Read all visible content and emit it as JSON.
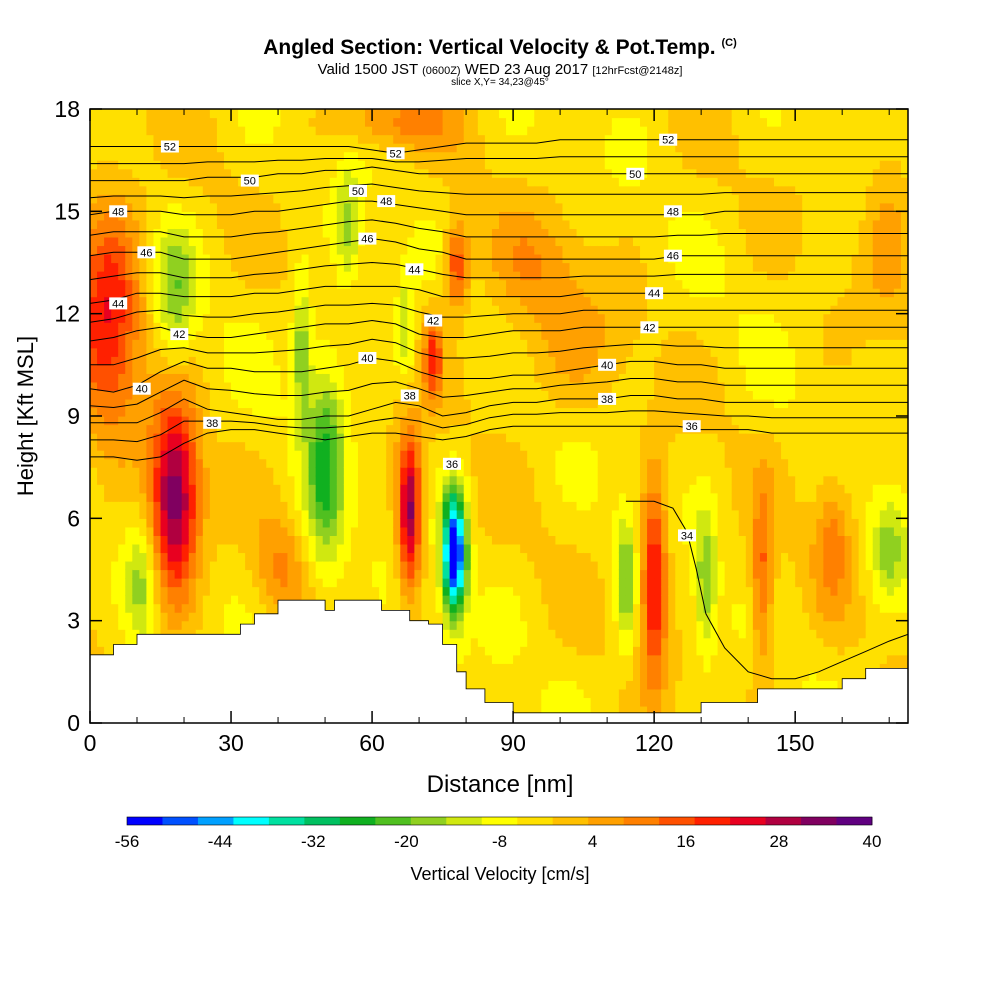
{
  "title": {
    "main": "Angled Section: Vertical Velocity & Pot.Temp.",
    "copyright": "(C)",
    "valid_prefix": "Valid 1500 JST",
    "valid_utc": "(0600Z)",
    "valid_suffix": "WED 23 Aug 2017",
    "forecast": "[12hrFcst@2148z]",
    "slice": "slice X,Y= 34,23@45°"
  },
  "chart_data": {
    "type": "heatmap",
    "xlabel": "Distance [nm]",
    "ylabel": "Height [Kft MSL]",
    "xlim": [
      0,
      174
    ],
    "ylim": [
      0,
      18
    ],
    "x_ticks": [
      0,
      30,
      60,
      90,
      120,
      150
    ],
    "y_ticks": [
      0,
      3,
      6,
      9,
      12,
      15,
      18
    ],
    "colorbar": {
      "label": "Vertical Velocity [cm/s]",
      "tick_labels": [
        -56,
        -44,
        -32,
        -20,
        -8,
        4,
        16,
        28,
        40
      ],
      "colors": [
        "#0000ff",
        "#0050ff",
        "#00a0ff",
        "#00ffff",
        "#00e0a0",
        "#00c060",
        "#10b020",
        "#50c020",
        "#90d020",
        "#d0e810",
        "#ffff00",
        "#ffe000",
        "#ffc000",
        "#ffa000",
        "#ff8000",
        "#ff5000",
        "#ff2000",
        "#e80020",
        "#b00040",
        "#800060",
        "#600080"
      ]
    },
    "velocity_features": [
      {
        "x": 18,
        "z": 6.5,
        "rx": 5,
        "rz": 2.8,
        "w": 38
      },
      {
        "x": 68,
        "z": 6.2,
        "rx": 2.5,
        "rz": 2.2,
        "w": 36
      },
      {
        "x": 120,
        "z": 4.2,
        "rx": 2.8,
        "rz": 2.8,
        "w": 28
      },
      {
        "x": 77.5,
        "z": 5,
        "rx": 2.5,
        "rz": 1.8,
        "w": -56
      },
      {
        "x": 4,
        "z": 12,
        "rx": 7,
        "rz": 3.5,
        "w": 24
      },
      {
        "x": 78,
        "z": 13.4,
        "rx": 2.5,
        "rz": 1.3,
        "w": 22
      },
      {
        "x": 73,
        "z": 10.8,
        "rx": 2,
        "rz": 1.3,
        "w": 20
      },
      {
        "x": 50,
        "z": 7.5,
        "rx": 4,
        "rz": 3.5,
        "w": -20
      },
      {
        "x": 45,
        "z": 11,
        "rx": 2,
        "rz": 2,
        "w": -16
      },
      {
        "x": 18,
        "z": 12.5,
        "rx": 4,
        "rz": 2,
        "w": -14
      },
      {
        "x": 55,
        "z": 14.5,
        "rx": 2.5,
        "rz": 1.8,
        "w": -12
      },
      {
        "x": 67,
        "z": 11.5,
        "rx": 1.8,
        "rz": 1.5,
        "w": -12
      },
      {
        "x": 114,
        "z": 4.2,
        "rx": 2.2,
        "rz": 2,
        "w": -16
      },
      {
        "x": 131,
        "z": 4.2,
        "rx": 2.2,
        "rz": 2,
        "w": -16
      },
      {
        "x": 170,
        "z": 5.2,
        "rx": 4,
        "rz": 1.5,
        "w": -14
      },
      {
        "x": 11,
        "z": 4,
        "rx": 3,
        "rz": 2,
        "w": -12
      },
      {
        "x": 143,
        "z": 4,
        "rx": 2.5,
        "rz": 2.5,
        "w": 18
      },
      {
        "x": 158,
        "z": 5.5,
        "rx": 4,
        "rz": 2,
        "w": 12
      },
      {
        "x": 40,
        "z": 4.5,
        "rx": 5,
        "rz": 1.5,
        "w": 10
      },
      {
        "x": 65,
        "z": 17.6,
        "rx": 12,
        "rz": 0.8,
        "w": 12
      },
      {
        "x": 95,
        "z": 13.5,
        "rx": 10,
        "rz": 1.5,
        "w": 8
      },
      {
        "x": 100,
        "z": 11,
        "rx": 15,
        "rz": 2,
        "w": 6
      },
      {
        "x": 170,
        "z": 15,
        "rx": 5,
        "rz": 3,
        "w": 8
      }
    ],
    "terrain": {
      "x": [
        0,
        5,
        10,
        20,
        28,
        32,
        35,
        40,
        45,
        48,
        50,
        52,
        55,
        58,
        62,
        65,
        68,
        72,
        75,
        78,
        80,
        84,
        90,
        100,
        110,
        115,
        125,
        128,
        130,
        138,
        142,
        150,
        160,
        165,
        174
      ],
      "z": [
        2.0,
        2.3,
        2.6,
        2.6,
        2.6,
        2.9,
        3.2,
        3.6,
        3.6,
        3.6,
        3.3,
        3.6,
        3.6,
        3.6,
        3.3,
        3.3,
        3.0,
        2.9,
        2.3,
        1.5,
        1.0,
        0.6,
        0.3,
        0.3,
        0.3,
        0.3,
        0.3,
        0.3,
        0.6,
        0.6,
        1.0,
        1.0,
        1.3,
        1.6,
        1.6
      ]
    },
    "contours": {
      "x": [
        0,
        5,
        10,
        15,
        20,
        25,
        30,
        35,
        40,
        45,
        50,
        55,
        60,
        65,
        70,
        75,
        80,
        85,
        90,
        95,
        100,
        105,
        110,
        115,
        120,
        125,
        130,
        135,
        140,
        145,
        150,
        155,
        160,
        165,
        170,
        174
      ],
      "levels": [
        {
          "value": 36,
          "label": "36",
          "z": [
            7.8,
            7.8,
            7.7,
            7.8,
            8.2,
            8.5,
            8.6,
            8.6,
            8.5,
            8.4,
            8.3,
            8.4,
            8.5,
            8.5,
            8.4,
            8.3,
            8.4,
            8.6,
            8.7,
            8.7,
            8.7,
            8.7,
            8.7,
            8.7,
            8.7,
            8.7,
            8.6,
            8.6,
            8.6,
            8.5,
            8.5,
            8.5,
            8.5,
            8.5,
            8.5,
            8.5
          ]
        },
        {
          "value": 38,
          "label": "38",
          "z": [
            8.8,
            8.8,
            8.8,
            9.1,
            9.5,
            9.2,
            9.1,
            9.0,
            8.9,
            8.9,
            9.0,
            9.0,
            9.2,
            9.4,
            9.3,
            9.0,
            9.1,
            9.3,
            9.4,
            9.4,
            9.5,
            9.5,
            9.5,
            9.6,
            9.6,
            9.5,
            9.5,
            9.4,
            9.4,
            9.4,
            9.4,
            9.4,
            9.4,
            9.4,
            9.4,
            9.4
          ]
        },
        {
          "value": 40,
          "label": "40",
          "z": [
            9.8,
            9.7,
            9.9,
            10.3,
            10.6,
            10.4,
            10.4,
            10.3,
            10.3,
            10.3,
            10.4,
            10.5,
            10.7,
            10.6,
            10.3,
            10.1,
            10.1,
            10.1,
            10.2,
            10.2,
            10.3,
            10.4,
            10.5,
            10.6,
            10.6,
            10.5,
            10.5,
            10.4,
            10.4,
            10.4,
            10.4,
            10.4,
            10.4,
            10.4,
            10.4,
            10.4
          ]
        },
        {
          "value": 42,
          "label": "42",
          "z": [
            11.2,
            11.3,
            11.5,
            11.6,
            11.4,
            11.3,
            11.3,
            11.4,
            11.5,
            11.6,
            11.7,
            11.7,
            11.8,
            11.7,
            11.4,
            11.3,
            11.3,
            11.4,
            11.5,
            11.5,
            11.5,
            11.6,
            11.6,
            11.6,
            11.6,
            11.6,
            11.6,
            11.6,
            11.6,
            11.6,
            11.6,
            11.6,
            11.6,
            11.6,
            11.6,
            11.6
          ]
        },
        {
          "value": 44,
          "label": "44",
          "z": [
            12.3,
            12.4,
            12.6,
            12.6,
            12.5,
            12.5,
            12.5,
            12.6,
            12.6,
            12.7,
            12.8,
            12.8,
            12.8,
            12.8,
            12.7,
            12.5,
            12.5,
            12.5,
            12.5,
            12.5,
            12.5,
            12.6,
            12.6,
            12.6,
            12.6,
            12.6,
            12.6,
            12.6,
            12.6,
            12.6,
            12.6,
            12.6,
            12.6,
            12.6,
            12.6,
            12.6
          ]
        },
        {
          "value": 46,
          "label": "46",
          "z": [
            13.7,
            13.8,
            13.8,
            13.8,
            13.6,
            13.6,
            13.6,
            13.7,
            13.8,
            13.9,
            14.0,
            14.1,
            14.2,
            14.1,
            13.9,
            13.8,
            13.6,
            13.6,
            13.6,
            13.6,
            13.6,
            13.6,
            13.6,
            13.6,
            13.6,
            13.7,
            13.7,
            13.7,
            13.7,
            13.7,
            13.7,
            13.7,
            13.7,
            13.7,
            13.7,
            13.7
          ]
        },
        {
          "value": 48,
          "label": "48",
          "z": [
            14.9,
            15.0,
            15.0,
            15.0,
            14.9,
            14.9,
            14.9,
            15.0,
            15.0,
            15.1,
            15.2,
            15.3,
            15.3,
            15.2,
            15.1,
            15.0,
            14.9,
            14.9,
            14.9,
            14.9,
            14.9,
            14.9,
            14.9,
            14.9,
            14.9,
            14.9,
            14.9,
            15.0,
            15.0,
            15.0,
            15.0,
            15.0,
            15.0,
            15.0,
            15.0,
            15.0
          ]
        },
        {
          "value": 50,
          "label": "50",
          "z": [
            15.9,
            15.9,
            15.9,
            15.9,
            15.9,
            16.0,
            16.0,
            16.0,
            16.1,
            16.1,
            16.2,
            16.2,
            16.3,
            16.2,
            16.1,
            16.1,
            16.1,
            16.1,
            16.1,
            16.1,
            16.1,
            16.1,
            16.1,
            16.1,
            16.1,
            16.1,
            16.1,
            16.1,
            16.1,
            16.1,
            16.1,
            16.1,
            16.1,
            16.1,
            16.1,
            16.1
          ]
        },
        {
          "value": 52,
          "label": "52",
          "z": [
            16.9,
            16.9,
            16.9,
            16.9,
            16.9,
            16.9,
            16.9,
            16.9,
            16.9,
            16.9,
            16.9,
            16.9,
            16.8,
            16.7,
            16.8,
            16.9,
            17.0,
            17.0,
            17.0,
            17.0,
            17.1,
            17.1,
            17.1,
            17.1,
            17.1,
            17.1,
            17.1,
            17.1,
            17.1,
            17.1,
            17.1,
            17.1,
            17.1,
            17.1,
            17.1,
            17.1
          ]
        }
      ],
      "low_levels": [
        {
          "value": 34,
          "label": "34",
          "x": [
            114,
            120,
            124,
            127,
            129,
            131,
            135,
            140,
            145,
            150,
            155,
            160,
            165,
            170,
            174
          ],
          "z": [
            6.5,
            6.5,
            6.3,
            5.6,
            4.5,
            3.2,
            2.2,
            1.5,
            1.3,
            1.3,
            1.5,
            1.8,
            2.1,
            2.4,
            2.6
          ]
        }
      ],
      "inline_labels": [
        {
          "text": "52",
          "x": 17,
          "z": 16.9
        },
        {
          "text": "52",
          "x": 65,
          "z": 16.7
        },
        {
          "text": "52",
          "x": 123,
          "z": 17.1
        },
        {
          "text": "50",
          "x": 34,
          "z": 15.9
        },
        {
          "text": "50",
          "x": 57,
          "z": 15.6
        },
        {
          "text": "50",
          "x": 116,
          "z": 16.1
        },
        {
          "text": "48",
          "x": 6,
          "z": 15.0
        },
        {
          "text": "48",
          "x": 63,
          "z": 15.3
        },
        {
          "text": "48",
          "x": 124,
          "z": 15.0
        },
        {
          "text": "46",
          "x": 12,
          "z": 13.8
        },
        {
          "text": "46",
          "x": 59,
          "z": 14.2
        },
        {
          "text": "46",
          "x": 124,
          "z": 13.7
        },
        {
          "text": "44",
          "x": 6,
          "z": 12.3
        },
        {
          "text": "44",
          "x": 69,
          "z": 13.3
        },
        {
          "text": "44",
          "x": 120,
          "z": 12.6
        },
        {
          "text": "42",
          "x": 19,
          "z": 11.4
        },
        {
          "text": "42",
          "x": 73,
          "z": 11.8
        },
        {
          "text": "42",
          "x": 119,
          "z": 11.6
        },
        {
          "text": "40",
          "x": 11,
          "z": 9.8
        },
        {
          "text": "40",
          "x": 59,
          "z": 10.7
        },
        {
          "text": "40",
          "x": 110,
          "z": 10.5
        },
        {
          "text": "38",
          "x": 26,
          "z": 8.8
        },
        {
          "text": "38",
          "x": 68,
          "z": 9.6
        },
        {
          "text": "38",
          "x": 110,
          "z": 9.5
        },
        {
          "text": "36",
          "x": 77,
          "z": 7.6
        },
        {
          "text": "36",
          "x": 128,
          "z": 8.7
        },
        {
          "text": "34",
          "x": 127,
          "z": 5.5
        }
      ]
    }
  }
}
